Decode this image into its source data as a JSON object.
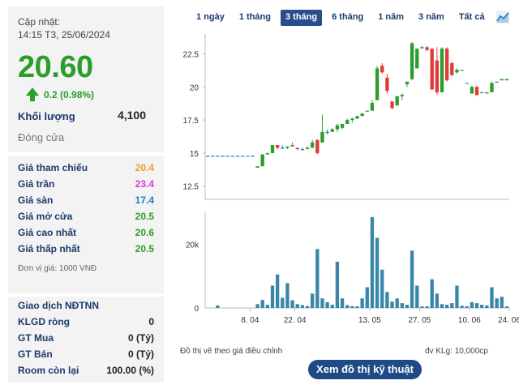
{
  "quote": {
    "update_label": "Cập nhật:",
    "update_time": "14:15 T3, 25/06/2024",
    "price": "20.60",
    "change": "0.2 (0.98%)",
    "volume_label": "Khối lượng",
    "volume_value": "4,100",
    "close_label": "Đóng cửa",
    "colors": {
      "up": "#2a9d2a",
      "ceiling": "#d63bd6",
      "floor": "#1f7fc1",
      "ref": "#f0a020"
    }
  },
  "prices": [
    {
      "label": "Giá tham chiếu",
      "value": "20.4",
      "color": "#f0a020"
    },
    {
      "label": "Giá trần",
      "value": "23.4",
      "color": "#d63bd6"
    },
    {
      "label": "Giá sàn",
      "value": "17.4",
      "color": "#1f7fc1"
    },
    {
      "label": "Giá mở cửa",
      "value": "20.5",
      "color": "#2a9d2a"
    },
    {
      "label": "Giá cao nhất",
      "value": "20.6",
      "color": "#2a9d2a"
    },
    {
      "label": "Giá thấp nhất",
      "value": "20.5",
      "color": "#2a9d2a"
    }
  ],
  "unit_note": "Đơn vị giá: 1000 VNĐ",
  "foreign": [
    {
      "label": "Giao dịch NĐTNN",
      "value": ""
    },
    {
      "label": "KLGD ròng",
      "value": "0"
    },
    {
      "label": "GT Mua",
      "value": "0 (Tỷ)"
    },
    {
      "label": "GT Bán",
      "value": "0 (Tỷ)"
    },
    {
      "label": "Room còn lại",
      "value": "100.00 (%)"
    }
  ],
  "tabs": [
    "1 ngày",
    "1 tháng",
    "3 tháng",
    "6 tháng",
    "1 năm",
    "3 năm",
    "Tất cả"
  ],
  "active_tab": "3 tháng",
  "footer": {
    "left_note": "Đồ thị vẽ theo giá điều chỉnh",
    "right_note": "đv KLg: 10,000cp",
    "button": "Xem đồ thị kỹ thuật"
  },
  "chart_data": {
    "type": "candlestick",
    "price_ticks": [
      "22.5",
      "20",
      "17.5",
      "15",
      "12.5"
    ],
    "price_tick_values": [
      22.5,
      20,
      17.5,
      15,
      12.5
    ],
    "volume_ticks": [
      "20k",
      "0"
    ],
    "volume_tick_values": [
      20000,
      0
    ],
    "x_ticks": [
      "8. 04",
      "22. 04",
      "13. 05",
      "27. 05",
      "10. 06",
      "24. 06"
    ],
    "ylim": [
      11.5,
      24.0
    ],
    "vol_max": 30000,
    "colors": {
      "up": "#2a9d2a",
      "down": "#e03a3a",
      "flat": "#1f7fc1",
      "volume": "#3a86a8"
    },
    "candles": [
      {
        "o": 14.8,
        "h": 14.8,
        "l": 14.8,
        "c": 14.8,
        "v": 0
      },
      {
        "o": 14.8,
        "h": 14.8,
        "l": 14.8,
        "c": 14.8,
        "v": 0
      },
      {
        "o": 14.8,
        "h": 14.8,
        "l": 14.8,
        "c": 14.8,
        "v": 800
      },
      {
        "o": 14.8,
        "h": 14.8,
        "l": 14.8,
        "c": 14.8,
        "v": 0
      },
      {
        "o": 14.8,
        "h": 14.8,
        "l": 14.8,
        "c": 14.8,
        "v": 0
      },
      {
        "o": 14.8,
        "h": 14.8,
        "l": 14.8,
        "c": 14.8,
        "v": 0
      },
      {
        "o": 14.8,
        "h": 14.8,
        "l": 14.8,
        "c": 14.8,
        "v": 0
      },
      {
        "o": 14.8,
        "h": 14.8,
        "l": 14.8,
        "c": 14.8,
        "v": 0
      },
      {
        "o": 14.8,
        "h": 14.8,
        "l": 14.8,
        "c": 14.8,
        "v": 0
      },
      {
        "o": 14.8,
        "h": 14.8,
        "l": 14.8,
        "c": 14.8,
        "v": 0
      },
      {
        "o": 13.9,
        "h": 14.0,
        "l": 13.9,
        "c": 14.0,
        "v": 1200
      },
      {
        "o": 14.0,
        "h": 14.9,
        "l": 14.0,
        "c": 14.9,
        "v": 2500
      },
      {
        "o": 14.9,
        "h": 15.0,
        "l": 14.9,
        "c": 15.0,
        "v": 1000
      },
      {
        "o": 15.0,
        "h": 15.6,
        "l": 15.0,
        "c": 15.6,
        "v": 7000
      },
      {
        "o": 15.6,
        "h": 15.6,
        "l": 15.3,
        "c": 15.4,
        "v": 10500
      },
      {
        "o": 15.4,
        "h": 15.6,
        "l": 15.3,
        "c": 15.4,
        "v": 3200
      },
      {
        "o": 15.4,
        "h": 15.5,
        "l": 15.3,
        "c": 15.5,
        "v": 7800
      },
      {
        "o": 15.5,
        "h": 15.8,
        "l": 15.5,
        "c": 15.6,
        "v": 2400
      },
      {
        "o": 15.4,
        "h": 15.4,
        "l": 15.2,
        "c": 15.3,
        "v": 1200
      },
      {
        "o": 15.3,
        "h": 15.4,
        "l": 15.2,
        "c": 15.3,
        "v": 900
      },
      {
        "o": 15.3,
        "h": 15.5,
        "l": 15.3,
        "c": 15.4,
        "v": 600
      },
      {
        "o": 15.4,
        "h": 16.0,
        "l": 15.4,
        "c": 15.8,
        "v": 4500
      },
      {
        "o": 16.0,
        "h": 16.0,
        "l": 14.9,
        "c": 15.0,
        "v": 18500
      },
      {
        "o": 15.8,
        "h": 17.9,
        "l": 15.8,
        "c": 16.6,
        "v": 3000
      },
      {
        "o": 16.6,
        "h": 16.8,
        "l": 16.4,
        "c": 16.6,
        "v": 1800
      },
      {
        "o": 16.6,
        "h": 16.9,
        "l": 16.6,
        "c": 16.8,
        "v": 1000
      },
      {
        "o": 16.8,
        "h": 17.2,
        "l": 16.6,
        "c": 17.1,
        "v": 14500
      },
      {
        "o": 16.9,
        "h": 17.2,
        "l": 16.8,
        "c": 17.2,
        "v": 3000
      },
      {
        "o": 17.2,
        "h": 17.6,
        "l": 17.2,
        "c": 17.5,
        "v": 900
      },
      {
        "o": 17.5,
        "h": 17.7,
        "l": 17.3,
        "c": 17.6,
        "v": 600
      },
      {
        "o": 17.6,
        "h": 17.8,
        "l": 17.6,
        "c": 17.8,
        "v": 500
      },
      {
        "o": 17.8,
        "h": 18.0,
        "l": 17.8,
        "c": 18.0,
        "v": 3000
      },
      {
        "o": 18.2,
        "h": 18.2,
        "l": 18.2,
        "c": 18.2,
        "v": 6500
      },
      {
        "o": 18.2,
        "h": 19.0,
        "l": 18.2,
        "c": 18.8,
        "v": 28500
      },
      {
        "o": 19.0,
        "h": 21.6,
        "l": 19.0,
        "c": 21.4,
        "v": 22000
      },
      {
        "o": 21.6,
        "h": 21.8,
        "l": 21.0,
        "c": 21.1,
        "v": 12000
      },
      {
        "o": 20.7,
        "h": 21.0,
        "l": 19.5,
        "c": 19.7,
        "v": 5000
      },
      {
        "o": 18.9,
        "h": 18.9,
        "l": 18.3,
        "c": 18.4,
        "v": 2000
      },
      {
        "o": 18.6,
        "h": 19.3,
        "l": 18.6,
        "c": 19.3,
        "v": 3000
      },
      {
        "o": 19.3,
        "h": 19.5,
        "l": 19.0,
        "c": 19.4,
        "v": 1500
      },
      {
        "o": 20.2,
        "h": 20.4,
        "l": 20.0,
        "c": 20.4,
        "v": 1000
      },
      {
        "o": 20.6,
        "h": 23.4,
        "l": 20.5,
        "c": 23.3,
        "v": 18000
      },
      {
        "o": 21.4,
        "h": 22.9,
        "l": 21.4,
        "c": 22.9,
        "v": 7000
      },
      {
        "o": 23.0,
        "h": 23.1,
        "l": 22.9,
        "c": 23.0,
        "v": 500
      },
      {
        "o": 23.0,
        "h": 23.1,
        "l": 22.7,
        "c": 22.8,
        "v": 500
      },
      {
        "o": 22.9,
        "h": 22.9,
        "l": 19.9,
        "c": 19.8,
        "v": 9000
      },
      {
        "o": 22.0,
        "h": 23.0,
        "l": 19.4,
        "c": 19.6,
        "v": 4500
      },
      {
        "o": 19.6,
        "h": 23.0,
        "l": 19.6,
        "c": 22.9,
        "v": 1200
      },
      {
        "o": 22.9,
        "h": 23.0,
        "l": 20.4,
        "c": 20.5,
        "v": 1000
      },
      {
        "o": 21.8,
        "h": 21.9,
        "l": 20.8,
        "c": 20.9,
        "v": 1500
      },
      {
        "o": 21.1,
        "h": 21.4,
        "l": 21.0,
        "c": 21.3,
        "v": 7000
      },
      {
        "o": 21.3,
        "h": 21.3,
        "l": 21.3,
        "c": 21.3,
        "v": 700
      },
      {
        "o": 20.3,
        "h": 20.3,
        "l": 20.3,
        "c": 20.3,
        "v": 500
      },
      {
        "o": 19.5,
        "h": 20.1,
        "l": 19.5,
        "c": 20.0,
        "v": 1800
      },
      {
        "o": 20.0,
        "h": 20.1,
        "l": 19.3,
        "c": 19.4,
        "v": 1500
      },
      {
        "o": 19.6,
        "h": 19.6,
        "l": 19.6,
        "c": 19.6,
        "v": 1000
      },
      {
        "o": 19.5,
        "h": 19.5,
        "l": 19.5,
        "c": 19.6,
        "v": 800
      },
      {
        "o": 19.6,
        "h": 20.4,
        "l": 19.6,
        "c": 20.3,
        "v": 6500
      },
      {
        "o": 20.4,
        "h": 20.4,
        "l": 20.4,
        "c": 20.4,
        "v": 3000
      },
      {
        "o": 20.5,
        "h": 20.6,
        "l": 20.5,
        "c": 20.6,
        "v": 3500
      },
      {
        "o": 20.5,
        "h": 20.6,
        "l": 20.5,
        "c": 20.6,
        "v": 500
      }
    ]
  }
}
